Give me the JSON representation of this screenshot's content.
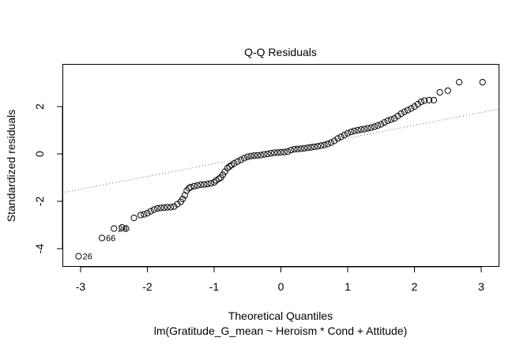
{
  "chart_data": {
    "type": "scatter",
    "title": "Q-Q Residuals",
    "xlabel": "Theoretical Quantiles",
    "ylabel": "Standardized residuals",
    "subtitle": "lm(Gratitude_G_mean ~ Heroism * Cond + Attitude)",
    "xlim": [
      -3.27,
      3.27
    ],
    "ylim": [
      -4.55,
      3.8
    ],
    "xticks": [
      -3,
      -2,
      -1,
      0,
      1,
      2,
      3
    ],
    "yticks": [
      -4,
      -2,
      0,
      2
    ],
    "grid": false,
    "reference_line": {
      "style": "dotted",
      "intercept": 0.13,
      "slope": 0.54
    },
    "labeled_points": [
      {
        "label": "26",
        "x": -3.03,
        "y": -4.32
      },
      {
        "label": "66",
        "x": -2.68,
        "y": -3.55
      },
      {
        "label": "29",
        "x": -2.5,
        "y": -3.15
      }
    ],
    "points": [
      [
        -3.03,
        -4.32
      ],
      [
        -2.68,
        -3.55
      ],
      [
        -2.5,
        -3.15
      ],
      [
        -2.38,
        -3.1
      ],
      [
        -2.32,
        -3.15
      ],
      [
        -2.2,
        -2.7
      ],
      [
        -2.1,
        -2.58
      ],
      [
        -2.05,
        -2.55
      ],
      [
        -2.0,
        -2.5
      ],
      [
        -1.95,
        -2.42
      ],
      [
        -1.9,
        -2.35
      ],
      [
        -1.85,
        -2.3
      ],
      [
        -1.8,
        -2.28
      ],
      [
        -1.75,
        -2.27
      ],
      [
        -1.7,
        -2.25
      ],
      [
        -1.65,
        -2.25
      ],
      [
        -1.6,
        -2.22
      ],
      [
        -1.55,
        -2.12
      ],
      [
        -1.5,
        -2.02
      ],
      [
        -1.47,
        -1.9
      ],
      [
        -1.44,
        -1.75
      ],
      [
        -1.41,
        -1.55
      ],
      [
        -1.38,
        -1.45
      ],
      [
        -1.35,
        -1.4
      ],
      [
        -1.3,
        -1.36
      ],
      [
        -1.25,
        -1.33
      ],
      [
        -1.2,
        -1.3
      ],
      [
        -1.15,
        -1.29
      ],
      [
        -1.1,
        -1.27
      ],
      [
        -1.05,
        -1.24
      ],
      [
        -1.0,
        -1.2
      ],
      [
        -0.97,
        -1.12
      ],
      [
        -0.93,
        -1.05
      ],
      [
        -0.9,
        -1.0
      ],
      [
        -0.87,
        -0.88
      ],
      [
        -0.84,
        -0.75
      ],
      [
        -0.8,
        -0.6
      ],
      [
        -0.77,
        -0.53
      ],
      [
        -0.74,
        -0.47
      ],
      [
        -0.7,
        -0.4
      ],
      [
        -0.65,
        -0.32
      ],
      [
        -0.6,
        -0.25
      ],
      [
        -0.55,
        -0.18
      ],
      [
        -0.5,
        -0.12
      ],
      [
        -0.45,
        -0.09
      ],
      [
        -0.4,
        -0.07
      ],
      [
        -0.35,
        -0.06
      ],
      [
        -0.3,
        -0.05
      ],
      [
        -0.25,
        -0.02
      ],
      [
        -0.2,
        0.0
      ],
      [
        -0.15,
        0.03
      ],
      [
        -0.1,
        0.05
      ],
      [
        -0.05,
        0.06
      ],
      [
        0.0,
        0.07
      ],
      [
        0.05,
        0.08
      ],
      [
        0.1,
        0.1
      ],
      [
        0.15,
        0.16
      ],
      [
        0.2,
        0.2
      ],
      [
        0.25,
        0.21
      ],
      [
        0.3,
        0.22
      ],
      [
        0.35,
        0.24
      ],
      [
        0.4,
        0.26
      ],
      [
        0.45,
        0.28
      ],
      [
        0.5,
        0.3
      ],
      [
        0.55,
        0.32
      ],
      [
        0.6,
        0.35
      ],
      [
        0.65,
        0.38
      ],
      [
        0.7,
        0.42
      ],
      [
        0.75,
        0.48
      ],
      [
        0.8,
        0.55
      ],
      [
        0.85,
        0.65
      ],
      [
        0.9,
        0.72
      ],
      [
        0.95,
        0.8
      ],
      [
        1.0,
        0.87
      ],
      [
        1.05,
        0.93
      ],
      [
        1.1,
        0.97
      ],
      [
        1.15,
        1.0
      ],
      [
        1.2,
        1.03
      ],
      [
        1.25,
        1.05
      ],
      [
        1.3,
        1.08
      ],
      [
        1.35,
        1.11
      ],
      [
        1.4,
        1.15
      ],
      [
        1.45,
        1.2
      ],
      [
        1.5,
        1.25
      ],
      [
        1.55,
        1.33
      ],
      [
        1.6,
        1.4
      ],
      [
        1.65,
        1.45
      ],
      [
        1.7,
        1.5
      ],
      [
        1.75,
        1.6
      ],
      [
        1.8,
        1.7
      ],
      [
        1.85,
        1.78
      ],
      [
        1.9,
        1.85
      ],
      [
        1.95,
        1.92
      ],
      [
        2.0,
        2.0
      ],
      [
        2.05,
        2.1
      ],
      [
        2.1,
        2.2
      ],
      [
        2.15,
        2.25
      ],
      [
        2.22,
        2.27
      ],
      [
        2.29,
        2.27
      ],
      [
        2.38,
        2.6
      ],
      [
        2.5,
        2.67
      ],
      [
        2.67,
        3.03
      ],
      [
        3.02,
        3.03
      ]
    ]
  }
}
